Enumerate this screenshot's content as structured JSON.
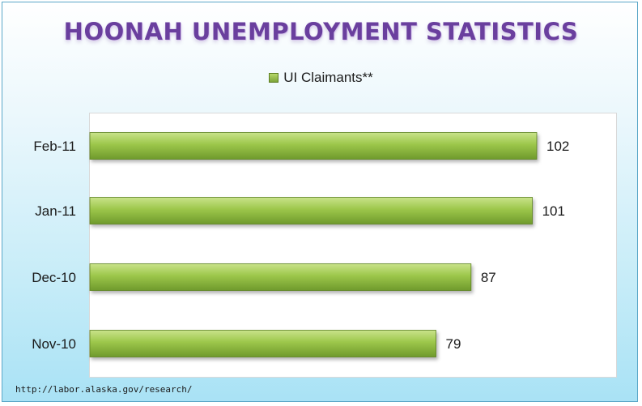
{
  "chart_data": {
    "type": "bar",
    "orientation": "horizontal",
    "title": "HOONAH UNEMPLOYMENT STATISTICS",
    "categories": [
      "Feb-11",
      "Jan-11",
      "Dec-10",
      "Nov-10"
    ],
    "series": [
      {
        "name": "UI Claimants**",
        "values": [
          102,
          101,
          87,
          79
        ]
      }
    ],
    "data_labels": [
      "102",
      "101",
      "87",
      "79"
    ],
    "xlim": [
      0,
      102
    ],
    "grid": false,
    "legend_position": "top",
    "colors": {
      "bar_light": "#c9e38a",
      "bar_mid": "#9cc64a",
      "bar_dark": "#6f9a2c",
      "title": "#6a3f9e"
    }
  },
  "footer": {
    "source": "http://labor.alaska.gov/research/"
  }
}
